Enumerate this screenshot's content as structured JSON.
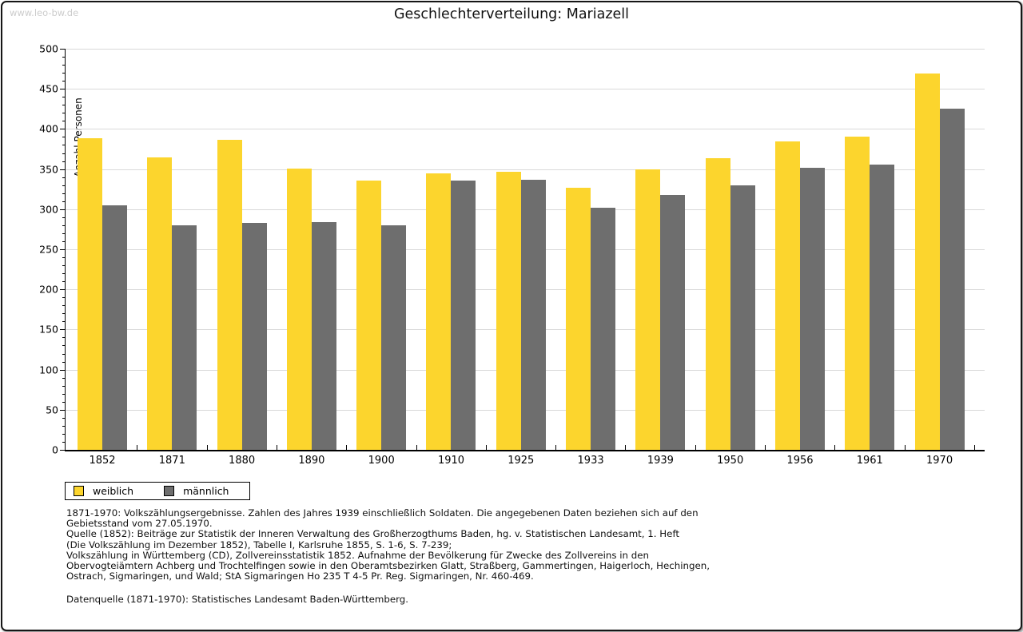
{
  "watermark": "www.leo-bw.de",
  "title": "Geschlechterverteilung: Mariazell",
  "chart_data": {
    "type": "bar",
    "title": "Geschlechterverteilung: Mariazell",
    "xlabel": "",
    "ylabel": "Anzahl Personen",
    "ylim": [
      0,
      500
    ],
    "ytick_step": 50,
    "yminor_step": 10,
    "grid": true,
    "legend_position": "bottom-left",
    "categories": [
      "1852",
      "1871",
      "1880",
      "1890",
      "1900",
      "1910",
      "1925",
      "1933",
      "1939",
      "1950",
      "1956",
      "1961",
      "1970"
    ],
    "series": [
      {
        "name": "weiblich",
        "color": "#FCD52D",
        "values": [
          388,
          365,
          386,
          351,
          336,
          345,
          347,
          327,
          350,
          364,
          384,
          390,
          469
        ]
      },
      {
        "name": "männlich",
        "color": "#6E6E6E",
        "values": [
          305,
          280,
          283,
          284,
          280,
          336,
          337,
          302,
          318,
          330,
          352,
          356,
          425
        ]
      }
    ]
  },
  "legend": {
    "items": [
      {
        "label": "weiblich",
        "color": "#FCD52D"
      },
      {
        "label": "männlich",
        "color": "#6E6E6E"
      }
    ]
  },
  "notes": [
    "1871-1970: Volkszählungsergebnisse. Zahlen des Jahres 1939 einschließlich Soldaten. Die angegebenen Daten beziehen sich auf den",
    "Gebietsstand vom 27.05.1970.",
    "Quelle (1852): Beiträge zur Statistik der Inneren Verwaltung des Großherzogthums Baden, hg. v. Statistischen Landesamt, 1. Heft",
    "(Die Volkszählung im Dezember 1852), Tabelle I, Karlsruhe 1855, S. 1-6, S. 7-239;",
    "Volkszählung in Württemberg (CD), Zollvereinsstatistik 1852. Aufnahme der Bevölkerung für Zwecke des Zollvereins in den",
    "Obervogteiämtern Achberg und Trochtelfingen sowie in den Oberamtsbezirken Glatt, Straßberg, Gammertingen, Haigerloch, Hechingen,",
    "Ostrach, Sigmaringen, und Wald; StA Sigmaringen Ho 235 T 4-5 Pr. Reg. Sigmaringen, Nr. 460-469."
  ],
  "source_note": "Datenquelle (1871-1970): Statistisches Landesamt Baden-Württemberg."
}
